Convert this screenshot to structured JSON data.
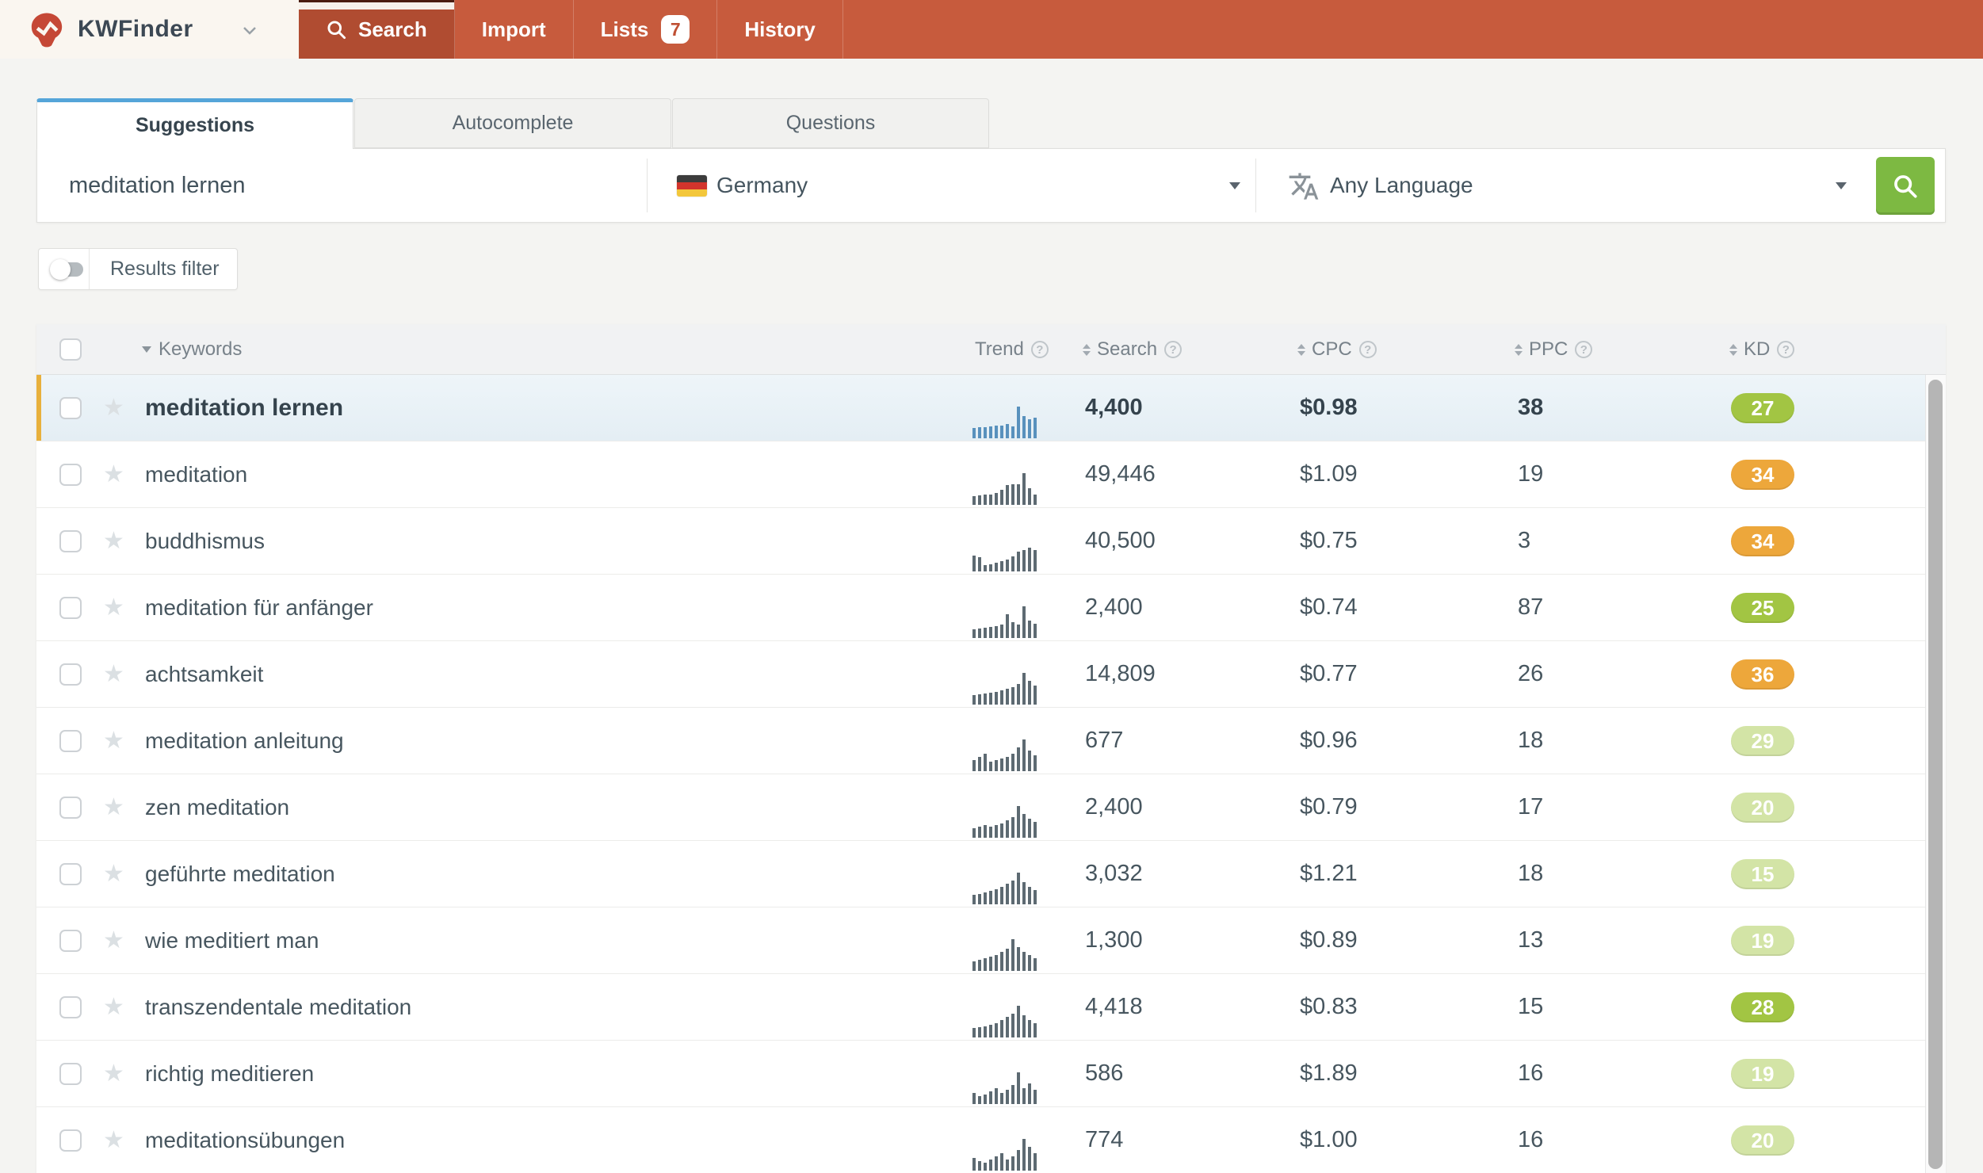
{
  "nav": {
    "brand": "KWFinder",
    "items": [
      {
        "label": "Search",
        "active": true,
        "icon": "magnifier",
        "badge": null
      },
      {
        "label": "Import",
        "active": false,
        "icon": null,
        "badge": null
      },
      {
        "label": "Lists",
        "active": false,
        "icon": null,
        "badge": "7"
      },
      {
        "label": "History",
        "active": false,
        "icon": null,
        "badge": null
      }
    ]
  },
  "tabs": [
    {
      "label": "Suggestions",
      "active": true
    },
    {
      "label": "Autocomplete",
      "active": false
    },
    {
      "label": "Questions",
      "active": false
    }
  ],
  "search_form": {
    "keyword_value": "meditation lernen",
    "country": "Germany",
    "language": "Any Language"
  },
  "results_filter_label": "Results filter",
  "table": {
    "columns": {
      "keywords": "Keywords",
      "trend": "Trend",
      "search": "Search",
      "cpc": "CPC",
      "ppc": "PPC",
      "kd": "KD"
    },
    "rows": [
      {
        "keyword": "meditation lernen",
        "search": "4,400",
        "cpc": "$0.98",
        "ppc": "38",
        "kd": "27",
        "kd_level": "green",
        "highlighted": true,
        "trend": [
          13,
          14,
          14,
          15,
          16,
          16,
          18,
          15,
          40,
          28,
          24,
          26
        ]
      },
      {
        "keyword": "meditation",
        "search": "49,446",
        "cpc": "$1.09",
        "ppc": "19",
        "kd": "34",
        "kd_level": "orange",
        "highlighted": false,
        "trend": [
          11,
          12,
          13,
          13,
          15,
          19,
          25,
          26,
          26,
          40,
          21,
          13
        ]
      },
      {
        "keyword": "buddhismus",
        "search": "40,500",
        "cpc": "$0.75",
        "ppc": "3",
        "kd": "34",
        "kd_level": "orange",
        "highlighted": false,
        "trend": [
          20,
          18,
          8,
          9,
          11,
          13,
          15,
          19,
          25,
          27,
          30,
          27
        ]
      },
      {
        "keyword": "meditation für anfänger",
        "search": "2,400",
        "cpc": "$0.74",
        "ppc": "87",
        "kd": "25",
        "kd_level": "green",
        "highlighted": false,
        "trend": [
          11,
          12,
          13,
          14,
          15,
          17,
          30,
          20,
          17,
          40,
          22,
          18
        ]
      },
      {
        "keyword": "achtsamkeit",
        "search": "14,809",
        "cpc": "$0.77",
        "ppc": "26",
        "kd": "36",
        "kd_level": "orange",
        "highlighted": false,
        "trend": [
          12,
          13,
          14,
          15,
          16,
          18,
          20,
          22,
          26,
          40,
          30,
          24
        ]
      },
      {
        "keyword": "meditation anleitung",
        "search": "677",
        "cpc": "$0.96",
        "ppc": "18",
        "kd": "29",
        "kd_level": "pale",
        "highlighted": false,
        "trend": [
          14,
          18,
          22,
          12,
          14,
          16,
          18,
          22,
          30,
          40,
          26,
          20
        ]
      },
      {
        "keyword": "zen meditation",
        "search": "2,400",
        "cpc": "$0.79",
        "ppc": "17",
        "kd": "20",
        "kd_level": "pale",
        "highlighted": false,
        "trend": [
          12,
          14,
          16,
          14,
          16,
          18,
          22,
          26,
          40,
          30,
          24,
          20
        ]
      },
      {
        "keyword": "geführte meditation",
        "search": "3,032",
        "cpc": "$1.21",
        "ppc": "18",
        "kd": "15",
        "kd_level": "pale",
        "highlighted": false,
        "trend": [
          12,
          13,
          15,
          17,
          19,
          22,
          26,
          30,
          40,
          28,
          22,
          18
        ]
      },
      {
        "keyword": "wie meditiert man",
        "search": "1,300",
        "cpc": "$0.89",
        "ppc": "13",
        "kd": "19",
        "kd_level": "pale",
        "highlighted": false,
        "trend": [
          12,
          14,
          16,
          18,
          20,
          24,
          28,
          40,
          30,
          24,
          20,
          16
        ]
      },
      {
        "keyword": "transzendentale meditation",
        "search": "4,418",
        "cpc": "$0.83",
        "ppc": "15",
        "kd": "28",
        "kd_level": "green",
        "highlighted": false,
        "trend": [
          12,
          13,
          14,
          16,
          18,
          22,
          26,
          30,
          40,
          28,
          22,
          18
        ]
      },
      {
        "keyword": "richtig meditieren",
        "search": "586",
        "cpc": "$1.89",
        "ppc": "16",
        "kd": "19",
        "kd_level": "pale",
        "highlighted": false,
        "trend": [
          14,
          10,
          12,
          16,
          20,
          14,
          18,
          24,
          40,
          20,
          26,
          18
        ]
      },
      {
        "keyword": "meditationsübungen",
        "search": "774",
        "cpc": "$1.00",
        "ppc": "16",
        "kd": "20",
        "kd_level": "pale",
        "highlighted": false,
        "trend": [
          16,
          12,
          10,
          14,
          18,
          22,
          14,
          18,
          26,
          40,
          30,
          22
        ]
      }
    ]
  },
  "colors": {
    "nav_bg": "#c75b3d",
    "nav_active_bg": "#b04c31",
    "tab_accent": "#55a5d9",
    "button_green": "#7db942",
    "row_accent": "#e8b03c",
    "kd_levels": {
      "green": "#a2c543",
      "orange": "#eda73b",
      "pale": "#d3e4a6"
    },
    "trend_bar": "#5d6a72",
    "trend_bar_highlight": "#5891bd"
  }
}
